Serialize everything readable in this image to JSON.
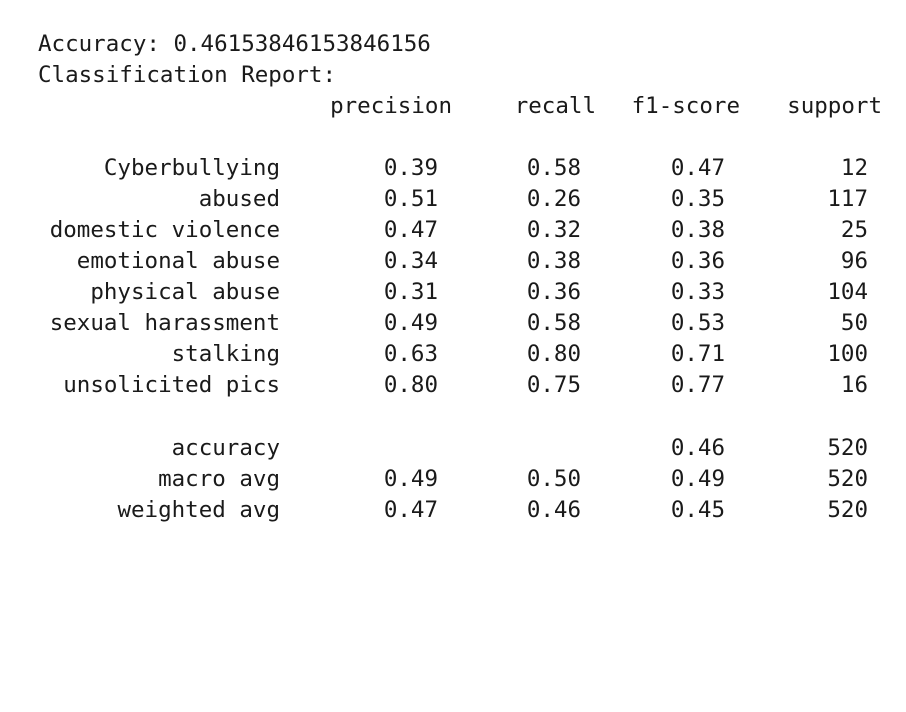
{
  "accuracy_line": "Accuracy: 0.46153846153846156",
  "report_title": "Classification Report:",
  "headers": {
    "precision": "precision",
    "recall": "recall",
    "f1": "f1-score",
    "support": "support"
  },
  "rows": [
    {
      "label": "Cyberbullying",
      "precision": "0.39",
      "recall": "0.58",
      "f1": "0.47",
      "support": "12"
    },
    {
      "label": "abused",
      "precision": "0.51",
      "recall": "0.26",
      "f1": "0.35",
      "support": "117"
    },
    {
      "label": "domestic violence",
      "precision": "0.47",
      "recall": "0.32",
      "f1": "0.38",
      "support": "25"
    },
    {
      "label": "emotional abuse",
      "precision": "0.34",
      "recall": "0.38",
      "f1": "0.36",
      "support": "96"
    },
    {
      "label": "physical abuse",
      "precision": "0.31",
      "recall": "0.36",
      "f1": "0.33",
      "support": "104"
    },
    {
      "label": "sexual harassment",
      "precision": "0.49",
      "recall": "0.58",
      "f1": "0.53",
      "support": "50"
    },
    {
      "label": "stalking",
      "precision": "0.63",
      "recall": "0.80",
      "f1": "0.71",
      "support": "100"
    },
    {
      "label": "unsolicited pics",
      "precision": "0.80",
      "recall": "0.75",
      "f1": "0.77",
      "support": "16"
    }
  ],
  "summary": [
    {
      "label": "accuracy",
      "precision": "",
      "recall": "",
      "f1": "0.46",
      "support": "520"
    },
    {
      "label": "macro avg",
      "precision": "0.49",
      "recall": "0.50",
      "f1": "0.49",
      "support": "520"
    },
    {
      "label": "weighted avg",
      "precision": "0.47",
      "recall": "0.46",
      "f1": "0.45",
      "support": "520"
    }
  ]
}
